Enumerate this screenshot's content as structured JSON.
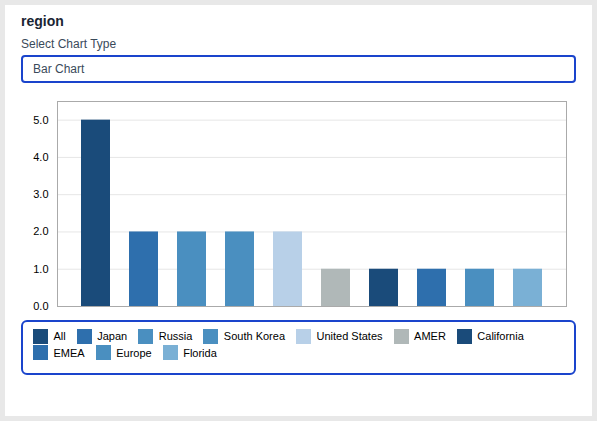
{
  "chart_data": {
    "type": "bar",
    "title": "region",
    "annotations": [
      "Select Chart Type",
      "Bar Chart"
    ],
    "categories": [
      "All",
      "Japan",
      "Russia",
      "South Korea",
      "United States",
      "AMER",
      "California",
      "EMEA",
      "Europe",
      "Florida"
    ],
    "values": [
      5,
      2,
      2,
      2,
      2,
      1,
      1,
      1,
      1,
      1
    ],
    "colors": [
      "#1a4b7a",
      "#2e6fad",
      "#4a8fc0",
      "#4a8fc0",
      "#b8d0e8",
      "#b0b8b8",
      "#1a4b7a",
      "#2e6fad",
      "#4a8fc0",
      "#7ab0d5"
    ],
    "ylim": [
      0,
      5.5
    ],
    "yticks": [
      0,
      1,
      2,
      3,
      4,
      5
    ],
    "grid": true,
    "legend": "bottom",
    "tick_labels": "y"
  }
}
